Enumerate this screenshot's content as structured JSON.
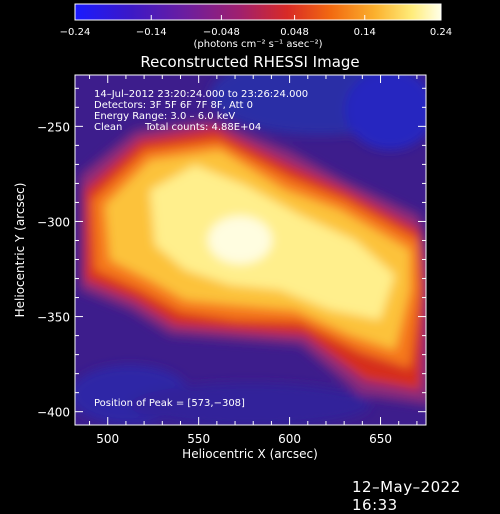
{
  "chart_data": {
    "type": "heatmap",
    "title": "Reconstructed RHESSI Image",
    "xlabel": "Heliocentric X (arcsec)",
    "ylabel": "Heliocentric Y (arcsec)",
    "xlim": [
      482,
      675
    ],
    "ylim": [
      -407,
      -223
    ],
    "x_ticks": [
      500,
      550,
      600,
      650
    ],
    "y_ticks": [
      -250,
      -300,
      -350,
      -400
    ],
    "x_tick_labels": [
      "500",
      "550",
      "600",
      "650"
    ],
    "y_tick_labels": [
      "−250",
      "−300",
      "−350",
      "−400"
    ],
    "colorbar": {
      "range": [
        -0.24,
        0.24
      ],
      "tick_values": [
        -0.24,
        -0.14,
        -0.048,
        0.048,
        0.14,
        0.24
      ],
      "tick_labels": [
        "−0.24",
        "−0.14",
        "−0.048",
        "0.048",
        "0.14",
        "0.24"
      ],
      "units_label": "(photons cm⁻² s⁻¹ asec⁻²)",
      "colors": [
        "#1a1aff",
        "#3b19c8",
        "#6b1ea0",
        "#a0206e",
        "#d82a26",
        "#f26a10",
        "#fbb12e",
        "#ffec7a",
        "#ffffe8"
      ]
    },
    "annotations": [
      "14–Jul–2012 23:20:24.000 to 23:26:24.000",
      "Detectors: 3F 5F 6F 7F 8F, Att 0",
      "Energy Range: 3.0 – 6.0 keV",
      "Clean",
      "Total counts: 4.88E+04"
    ],
    "peak_label": "Position of Peak = [573,−308]",
    "peak": [
      573,
      -308
    ]
  },
  "footer": {
    "date": "12–May–2022 16:33"
  }
}
